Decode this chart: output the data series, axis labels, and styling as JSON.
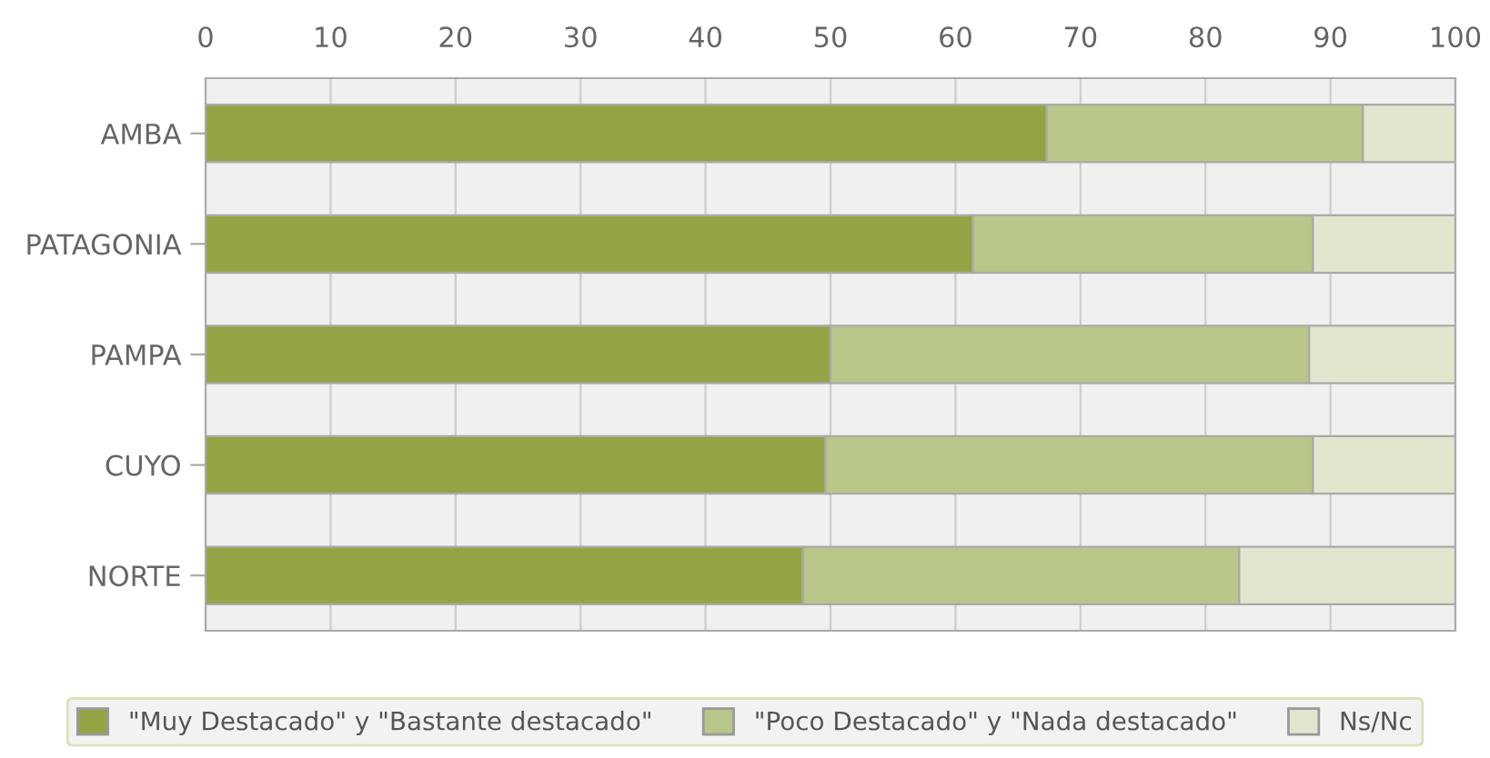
{
  "chart_data": {
    "type": "bar",
    "orientation": "horizontal",
    "stacked": true,
    "categories": [
      "AMBA",
      "PATAGONIA",
      "PAMPA",
      "CUYO",
      "NORTE"
    ],
    "series": [
      {
        "name": "\"Muy Destacado\" y \"Bastante destacado\"",
        "color": "#93a445",
        "values": [
          67.3,
          61.4,
          50.0,
          49.6,
          47.8
        ]
      },
      {
        "name": "\"Poco Destacado\" y \"Nada destacado\"",
        "color": "#b9c689",
        "values": [
          25.3,
          27.2,
          38.3,
          39.0,
          34.9
        ]
      },
      {
        "name": "Ns/Nc",
        "color": "#e1e7cf",
        "values": [
          7.4,
          11.4,
          11.7,
          11.4,
          17.3
        ]
      }
    ],
    "xlim": [
      0,
      100
    ],
    "xticks": [
      0,
      10,
      20,
      30,
      40,
      50,
      60,
      70,
      80,
      90,
      100
    ],
    "grid": "x",
    "legend": "bottom"
  }
}
